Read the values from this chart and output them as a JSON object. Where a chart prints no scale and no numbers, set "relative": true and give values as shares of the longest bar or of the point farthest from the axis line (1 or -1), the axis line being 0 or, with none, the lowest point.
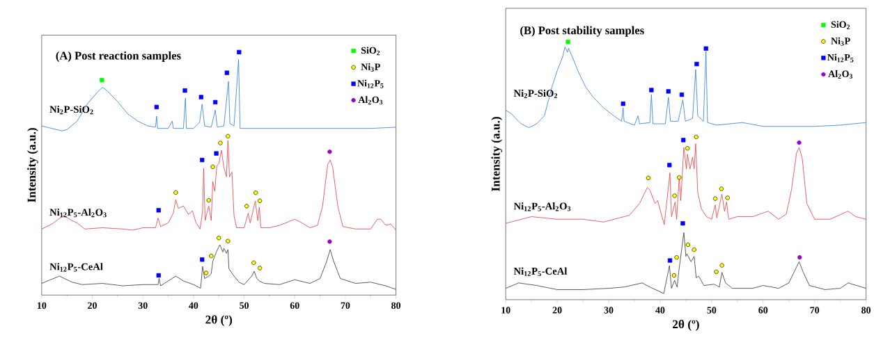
{
  "chart_data": [
    {
      "type": "line",
      "title": "(A) Post reaction samples",
      "xlabel": "2θ (º)",
      "ylabel": "Intensity (a.u.)",
      "relative": true,
      "legend": "top right",
      "xlim": [
        10,
        80
      ],
      "xticks": [
        10,
        20,
        30,
        40,
        50,
        60,
        70,
        80
      ],
      "series": [
        {
          "name": "Ni$_{2}$P-SiO$_{2}$",
          "color": "#2a7ae2",
          "x": [
            10,
            12,
            14,
            15,
            17,
            19,
            21,
            22,
            23,
            25,
            27,
            29,
            31,
            32.5,
            32.7,
            32.9,
            35,
            35.8,
            36,
            38,
            38.4,
            38.6,
            40,
            41.2,
            41.7,
            42.2,
            43.5,
            44.3,
            44.7,
            46,
            46.9,
            47.2,
            48,
            48.9,
            49.2,
            52,
            56,
            60,
            70,
            75,
            80
          ],
          "values": [
            0.696,
            0.686,
            0.676,
            0.681,
            0.716,
            0.786,
            0.835,
            0.855,
            0.84,
            0.796,
            0.746,
            0.716,
            0.696,
            0.691,
            0.736,
            0.686,
            0.686,
            0.716,
            0.686,
            0.686,
            0.811,
            0.686,
            0.686,
            0.711,
            0.786,
            0.696,
            0.691,
            0.761,
            0.691,
            0.696,
            0.88,
            0.706,
            0.696,
            0.97,
            0.686,
            0.686,
            0.686,
            0.686,
            0.686,
            0.686,
            0.691
          ]
        },
        {
          "name": "Ni$_{12}$P$_{5}$-Al$_{2}$O$_{3}$",
          "color": "#e8383d",
          "x": [
            10,
            12,
            14.3,
            16,
            17,
            18.5,
            22,
            26,
            28,
            30,
            32.5,
            33,
            33.5,
            35,
            36,
            36.5,
            37,
            38,
            39,
            39.8,
            40.5,
            41.3,
            41.8,
            42,
            42.3,
            43,
            43.5,
            43.8,
            44.2,
            44.6,
            45,
            45.5,
            46,
            46.5,
            46.8,
            47.1,
            47.6,
            48,
            48.5,
            50,
            50.8,
            51.2,
            52.2,
            52.7,
            53,
            53.3,
            55,
            57,
            60,
            61,
            63,
            64.5,
            65.5,
            66.5,
            67,
            67.5,
            68.5,
            69.5,
            72,
            75,
            76.3,
            77,
            78,
            79,
            80
          ],
          "values": [
            0.272,
            0.292,
            0.327,
            0.307,
            0.297,
            0.272,
            0.277,
            0.272,
            0.267,
            0.277,
            0.277,
            0.317,
            0.282,
            0.297,
            0.337,
            0.392,
            0.357,
            0.367,
            0.332,
            0.347,
            0.297,
            0.272,
            0.347,
            0.521,
            0.307,
            0.367,
            0.307,
            0.467,
            0.427,
            0.531,
            0.541,
            0.596,
            0.526,
            0.487,
            0.636,
            0.487,
            0.506,
            0.327,
            0.277,
            0.277,
            0.337,
            0.297,
            0.387,
            0.307,
            0.362,
            0.277,
            0.277,
            0.287,
            0.312,
            0.302,
            0.277,
            0.287,
            0.367,
            0.536,
            0.556,
            0.526,
            0.367,
            0.282,
            0.272,
            0.272,
            0.312,
            0.312,
            0.287,
            0.292,
            0.267
          ]
        },
        {
          "name": "Ni$_{12}$P$_{5}$-CeAl",
          "color": "#333333",
          "x": [
            10,
            13.5,
            16,
            18,
            22,
            26,
            30,
            33,
            33.2,
            33.5,
            36.5,
            38,
            40,
            41.4,
            41.8,
            42.2,
            43,
            43.5,
            43.8,
            44.5,
            45.2,
            45.8,
            46,
            46.5,
            46.8,
            47,
            48,
            49,
            50,
            51.5,
            52,
            52.5,
            53,
            54,
            57,
            60,
            63,
            65,
            66.3,
            67,
            67.7,
            69,
            72,
            75,
            78,
            80
          ],
          "values": [
            0.048,
            0.078,
            0.053,
            0.043,
            0.048,
            0.038,
            0.043,
            0.043,
            0.068,
            0.038,
            0.078,
            0.058,
            0.043,
            0.028,
            0.118,
            0.068,
            0.078,
            0.088,
            0.138,
            0.177,
            0.207,
            0.177,
            0.192,
            0.172,
            0.187,
            0.108,
            0.078,
            0.053,
            0.043,
            0.078,
            0.098,
            0.068,
            0.058,
            0.048,
            0.043,
            0.063,
            0.048,
            0.068,
            0.138,
            0.187,
            0.138,
            0.068,
            0.048,
            0.053,
            0.038,
            0.023
          ]
        },
        {
          "name": "SiO$_{2}$",
          "type": "scatter",
          "marker": "square",
          "color": "#00ff00",
          "x": [
            21.9
          ],
          "values": [
            0.885
          ]
        },
        {
          "name": "Ni$_{3}$P",
          "type": "scatter",
          "marker": "circle",
          "color": "#ffff00",
          "x": [
            36.5,
            43,
            43.8,
            45.3,
            46.8,
            50.5,
            52.3,
            53.1,
            42.5,
            43.5,
            45,
            46.8,
            51.9,
            53.1
          ],
          "values": [
            0.422,
            0.39,
            0.528,
            0.626,
            0.654,
            0.366,
            0.421,
            0.388,
            0.091,
            0.161,
            0.235,
            0.222,
            0.133,
            0.111
          ]
        },
        {
          "name": "Ni$_{12}$P$_{5}$",
          "type": "scatter",
          "marker": "square",
          "color": "#0000ff",
          "x": [
            32.7,
            38.3,
            41.5,
            44.3,
            46.6,
            49,
            33.1,
            41.7,
            44.5,
            33.1,
            41.7
          ],
          "values": [
            0.774,
            0.842,
            0.815,
            0.794,
            0.915,
            1.0,
            0.349,
            0.556,
            0.583,
            0.081,
            0.146
          ]
        },
        {
          "name": "Al$_{2}$O$_{3}$",
          "type": "scatter",
          "marker": "circle",
          "color": "#9900cc",
          "x": [
            66.9,
            66.9
          ],
          "values": [
            0.59,
            0.22
          ]
        }
      ]
    },
    {
      "type": "line",
      "title": "(B) Post stability samples",
      "xlabel": "2θ (º)",
      "ylabel": "Intensity (a.u.)",
      "relative": true,
      "legend": "top right",
      "xlim": [
        10,
        80
      ],
      "xticks": [
        10,
        20,
        30,
        40,
        50,
        60,
        70,
        80
      ],
      "series": [
        {
          "name": "Ni$_{2}$P-SiO$_{2}$",
          "color": "#2a7ae2",
          "x": [
            10,
            11,
            12,
            13,
            14.5,
            16,
            17.5,
            19,
            20,
            21,
            21.5,
            22,
            22.2,
            23,
            24,
            25.5,
            27,
            29,
            31,
            32.5,
            32.8,
            33,
            35,
            35.7,
            36,
            38,
            38.3,
            38.6,
            41,
            41.6,
            42,
            43.5,
            44.4,
            44.9,
            46.3,
            46.9,
            47.3,
            48.4,
            48.9,
            49.2,
            51,
            56,
            60,
            70,
            75,
            80
          ],
          "values": [
            0.734,
            0.723,
            0.702,
            0.682,
            0.667,
            0.682,
            0.713,
            0.826,
            0.888,
            0.939,
            0.98,
            0.96,
            0.975,
            0.939,
            0.888,
            0.826,
            0.785,
            0.744,
            0.713,
            0.692,
            0.744,
            0.692,
            0.677,
            0.713,
            0.682,
            0.687,
            0.795,
            0.682,
            0.682,
            0.785,
            0.692,
            0.692,
            0.775,
            0.692,
            0.703,
            0.893,
            0.713,
            0.692,
            0.963,
            0.687,
            0.677,
            0.687,
            0.672,
            0.672,
            0.677,
            0.687
          ]
        },
        {
          "name": "Ni$_{12}$P$_{5}$-Al$_{2}$O$_{3}$",
          "color": "#e8383d",
          "x": [
            10,
            15,
            20,
            25,
            29,
            32,
            34,
            36,
            37.5,
            38,
            39,
            39.5,
            40.8,
            41.9,
            42.2,
            42.9,
            43.2,
            43.7,
            44,
            44.6,
            45.1,
            45.3,
            45.8,
            46.3,
            46.6,
            46.9,
            47.3,
            48,
            49,
            50,
            50.7,
            51,
            52,
            52.5,
            52.9,
            53.3,
            55,
            58,
            61,
            63,
            64.5,
            65.5,
            66.5,
            67,
            67.6,
            68.5,
            70,
            73,
            76.5,
            78,
            80
          ],
          "values": [
            0.296,
            0.322,
            0.312,
            0.312,
            0.301,
            0.317,
            0.327,
            0.373,
            0.435,
            0.425,
            0.373,
            0.384,
            0.291,
            0.492,
            0.322,
            0.379,
            0.312,
            0.476,
            0.384,
            0.59,
            0.507,
            0.564,
            0.507,
            0.553,
            0.507,
            0.605,
            0.415,
            0.353,
            0.322,
            0.312,
            0.368,
            0.317,
            0.409,
            0.343,
            0.379,
            0.312,
            0.322,
            0.322,
            0.343,
            0.312,
            0.332,
            0.425,
            0.569,
            0.59,
            0.548,
            0.373,
            0.312,
            0.312,
            0.343,
            0.322,
            0.312
          ]
        },
        {
          "name": "Ni$_{12}$P$_{5}$-CeAl",
          "color": "#333333",
          "x": [
            10,
            12.5,
            16,
            20,
            25,
            30,
            33,
            36.5,
            38,
            40.7,
            41.8,
            42.2,
            42.8,
            43.3,
            43.6,
            44.6,
            45,
            45.2,
            46,
            46.6,
            47,
            47.5,
            48.5,
            50.5,
            51.5,
            52,
            52.7,
            54,
            58,
            60,
            63,
            65,
            66.5,
            67,
            67.8,
            69,
            72,
            75,
            76.5,
            80
          ],
          "values": [
            0.044,
            0.065,
            0.055,
            0.039,
            0.039,
            0.044,
            0.049,
            0.065,
            0.049,
            0.024,
            0.132,
            0.044,
            0.075,
            0.049,
            0.106,
            0.26,
            0.168,
            0.178,
            0.147,
            0.168,
            0.085,
            0.091,
            0.055,
            0.06,
            0.049,
            0.106,
            0.065,
            0.044,
            0.044,
            0.055,
            0.044,
            0.065,
            0.127,
            0.147,
            0.106,
            0.055,
            0.039,
            0.044,
            0.065,
            0.044
          ]
        },
        {
          "name": "SiO$_{2}$",
          "type": "scatter",
          "marker": "square",
          "color": "#00ff00",
          "x": [
            22.1
          ],
          "values": [
            1.0
          ]
        },
        {
          "name": "Ni$_{3}$P",
          "type": "scatter",
          "marker": "circle",
          "color": "#ffff00",
          "x": [
            37.7,
            42.8,
            43.7,
            45.3,
            47,
            50.7,
            51.9,
            53.1,
            42.7,
            43.2,
            45.4,
            46.6,
            50.9,
            52
          ],
          "values": [
            0.472,
            0.403,
            0.474,
            0.587,
            0.631,
            0.392,
            0.43,
            0.395,
            0.094,
            0.164,
            0.213,
            0.194,
            0.108,
            0.133
          ]
        },
        {
          "name": "Ni$_{12}$P$_{5}$",
          "type": "scatter",
          "marker": "square",
          "color": "#0000ff",
          "x": [
            32.8,
            38.3,
            41.6,
            44.2,
            47.1,
            48.9,
            41.8,
            44.5,
            44.4,
            41.9
          ],
          "values": [
            0.76,
            0.813,
            0.808,
            0.795,
            0.914,
            0.974,
            0.522,
            0.619,
            0.296,
            0.152
          ]
        },
        {
          "name": "Al$_{2}$O$_{3}$",
          "type": "scatter",
          "marker": "circle",
          "color": "#9900cc",
          "x": [
            67,
            67.1
          ],
          "values": [
            0.609,
            0.164
          ]
        }
      ]
    }
  ]
}
